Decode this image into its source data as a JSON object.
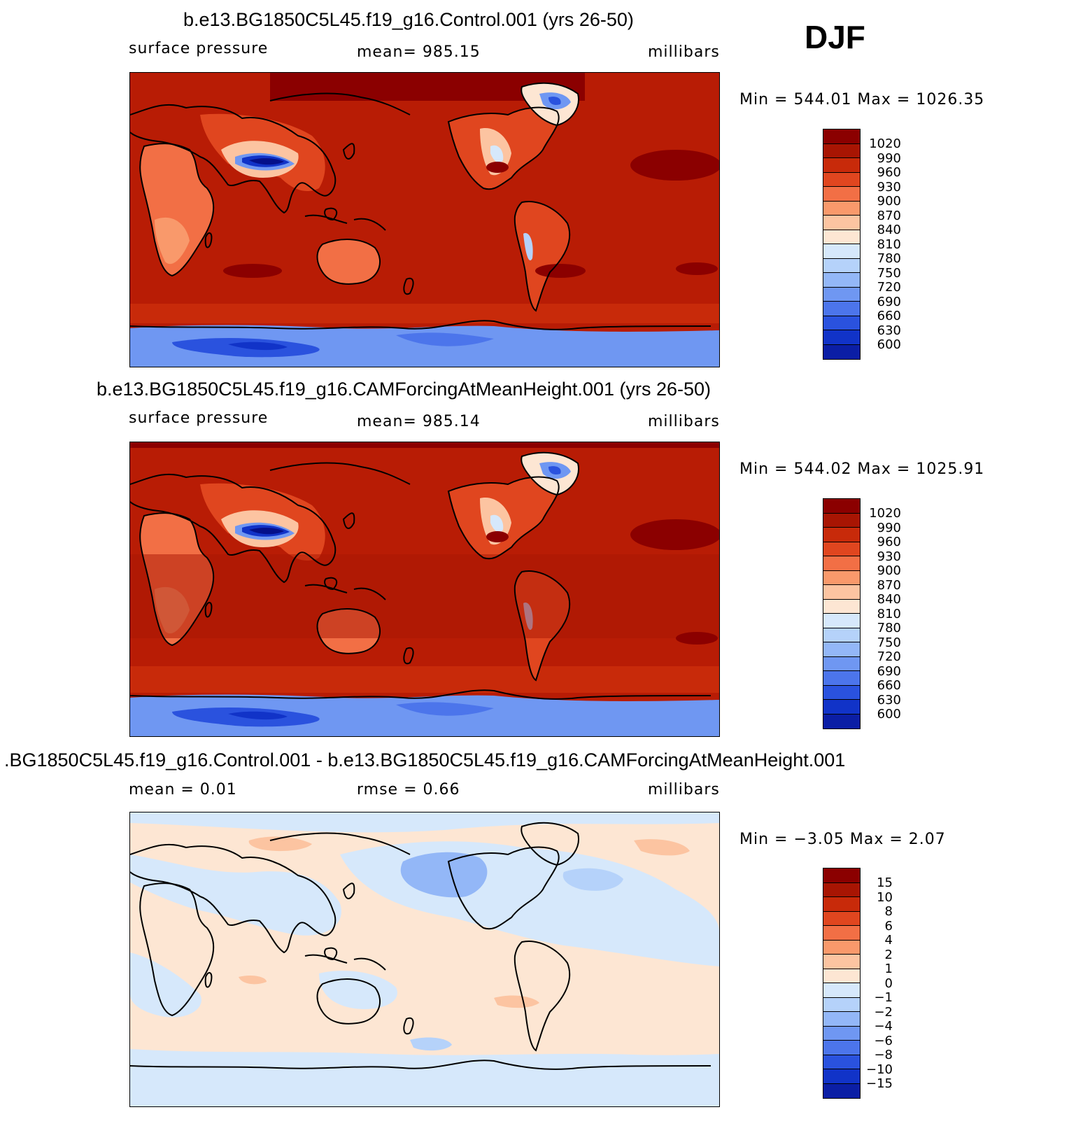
{
  "season": "DJF",
  "panels": [
    {
      "title": "b.e13.BG1850C5L45.f19_g16.Control.001 (yrs 26-50)",
      "variable": "surface pressure",
      "stat": "mean=  985.15",
      "units": "millibars",
      "minmax": "Min  =  544.01  Max  =  1026.35"
    },
    {
      "title": "b.e13.BG1850C5L45.f19_g16.CAMForcingAtMeanHeight.001 (yrs 26-50)",
      "variable": "surface pressure",
      "stat": "mean=  985.14",
      "units": "millibars",
      "minmax": "Min  =  544.02  Max  =  1025.91"
    },
    {
      "title": ".BG1850C5L45.f19_g16.Control.001 - b.e13.BG1850C5L45.f19_g16.CAMForcingAtMeanHeight.001",
      "stat_mean": "mean  =     0.01",
      "stat_rmse": "rmse  =     0.66",
      "units": "millibars",
      "minmax": "Min  =    −3.05  Max  =      2.07"
    }
  ],
  "colorbar_pressure": {
    "colors": [
      "#8b0000",
      "#a81503",
      "#c82a0a",
      "#e0461f",
      "#f26f45",
      "#f9996b",
      "#fcc4a1",
      "#fde6d3",
      "#d6e8fb",
      "#b5d2fa",
      "#93b7f7",
      "#6f97f2",
      "#4c75eb",
      "#2a52de",
      "#1133c8",
      "#0b1ea5",
      "#05108a"
    ],
    "labels": [
      "1020",
      "990",
      "960",
      "930",
      "900",
      "870",
      "840",
      "810",
      "780",
      "750",
      "720",
      "690",
      "660",
      "630",
      "600"
    ]
  },
  "colorbar_diff": {
    "colors": [
      "#8b0000",
      "#a81503",
      "#c82a0a",
      "#e0461f",
      "#f26f45",
      "#f9996b",
      "#fcc4a1",
      "#fde6d3",
      "#d6e8fb",
      "#b5d2fa",
      "#93b7f7",
      "#6f97f2",
      "#4c75eb",
      "#2a52de",
      "#1133c8",
      "#0b1ea5",
      "#05108a"
    ],
    "labels": [
      "15",
      "10",
      "8",
      "6",
      "4",
      "2",
      "1",
      "0",
      "−1",
      "−2",
      "−4",
      "−6",
      "−8",
      "−10",
      "−15"
    ]
  }
}
